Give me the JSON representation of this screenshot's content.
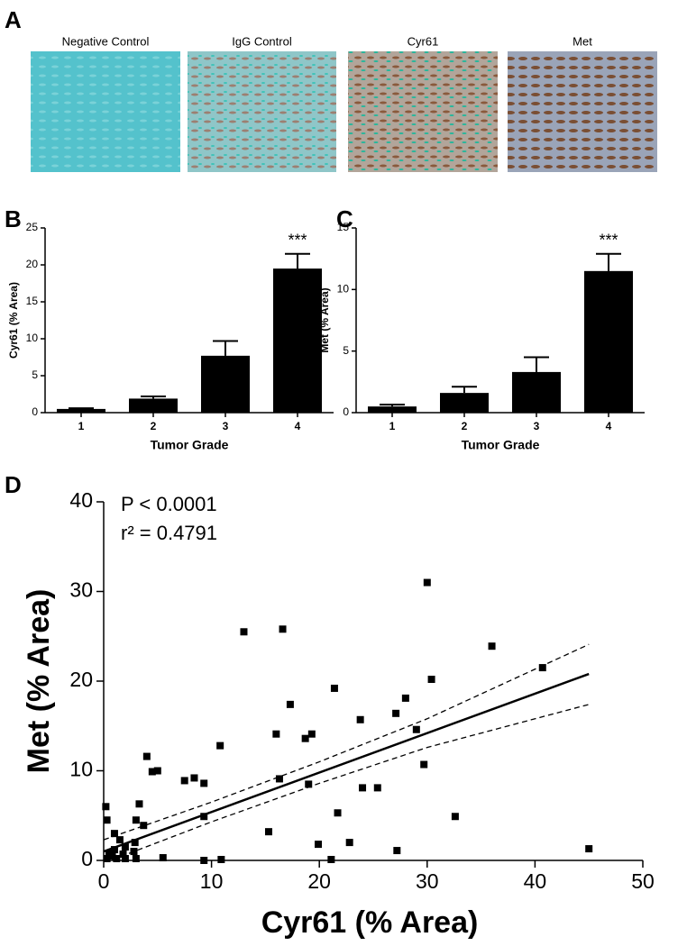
{
  "panel_a": {
    "label": "A",
    "images": [
      "Negative Control",
      "IgG Control",
      "Cyr61",
      "Met"
    ]
  },
  "chart_data": [
    {
      "type": "bar",
      "panel_label": "B",
      "categories": [
        "1",
        "2",
        "3",
        "4"
      ],
      "values": [
        0.5,
        1.9,
        7.7,
        19.5
      ],
      "errors": [
        0.1,
        0.3,
        2.0,
        2.0
      ],
      "color": "#000000",
      "ylim": [
        0,
        25
      ],
      "yticks": [
        0,
        5,
        10,
        15,
        20,
        25
      ],
      "xlabel": "Tumor Grade",
      "ylabel": "Cyr61 (% Area)",
      "annotation": "***"
    },
    {
      "type": "bar",
      "panel_label": "C",
      "categories": [
        "1",
        "2",
        "3",
        "4"
      ],
      "values": [
        0.5,
        1.6,
        3.3,
        11.5
      ],
      "errors": [
        0.15,
        0.5,
        1.2,
        1.4
      ],
      "color": "#000000",
      "ylim": [
        0,
        15
      ],
      "yticks": [
        0,
        5,
        10,
        15
      ],
      "xlabel": "Tumor Grade",
      "ylabel": "Met (% Area)",
      "annotation": "***"
    },
    {
      "type": "scatter",
      "panel_label": "D",
      "xlabel": "Cyr61 (% Area)",
      "ylabel": "Met (% Area)",
      "annotations": [
        "P < 0.0001",
        "r² = 0.4791"
      ],
      "xlim": [
        0,
        50
      ],
      "ylim": [
        0,
        40
      ],
      "xticks": [
        0,
        10,
        20,
        30,
        40,
        50
      ],
      "yticks": [
        0,
        10,
        20,
        30,
        40
      ],
      "color": "#000000",
      "series": [
        {
          "x": [
            0.2,
            0.3,
            0.5,
            0.3,
            1,
            1.5,
            1,
            0.8,
            1.2,
            2,
            1.8,
            2,
            2.9,
            3,
            2.8,
            3,
            3.3,
            3.7,
            4,
            4.5,
            5,
            5.5,
            7.5,
            8.4,
            9.3,
            9.3,
            9.3,
            10.8,
            10.9,
            13,
            15.3,
            16,
            16.3,
            16.6,
            17.3,
            18.7,
            19,
            19.3,
            19.9,
            21.1,
            21.4,
            21.7,
            22.8,
            23.8,
            24,
            25.4,
            27.1,
            27.2,
            28,
            29,
            29.7,
            30,
            30.4,
            32.6,
            36,
            40.7,
            45
          ],
          "y": [
            6,
            4.5,
            0.8,
            0.2,
            3,
            2.3,
            1.2,
            0.5,
            0.2,
            1.5,
            0.7,
            0.2,
            2,
            4.5,
            1,
            0.2,
            6.3,
            3.9,
            11.6,
            9.9,
            10,
            0.3,
            8.9,
            9.2,
            8.6,
            4.9,
            0,
            12.8,
            0.1,
            25.5,
            3.2,
            14.1,
            9.1,
            25.8,
            17.4,
            13.6,
            8.5,
            14.1,
            1.8,
            0.1,
            19.2,
            5.3,
            2,
            15.7,
            8.1,
            8.1,
            16.4,
            1.1,
            18.1,
            14.6,
            10.7,
            31,
            20.2,
            4.9,
            23.9,
            21.5,
            1.3
          ]
        }
      ],
      "fit": {
        "x": [
          0,
          45
        ],
        "y": [
          1,
          20.8
        ]
      },
      "confidence_band": {
        "x": [
          0,
          10,
          20,
          30,
          45
        ],
        "upper": [
          2.3,
          6.5,
          11.0,
          15.8,
          24.1
        ],
        "lower": [
          -0.3,
          4.3,
          8.6,
          12.6,
          17.4
        ]
      }
    }
  ]
}
